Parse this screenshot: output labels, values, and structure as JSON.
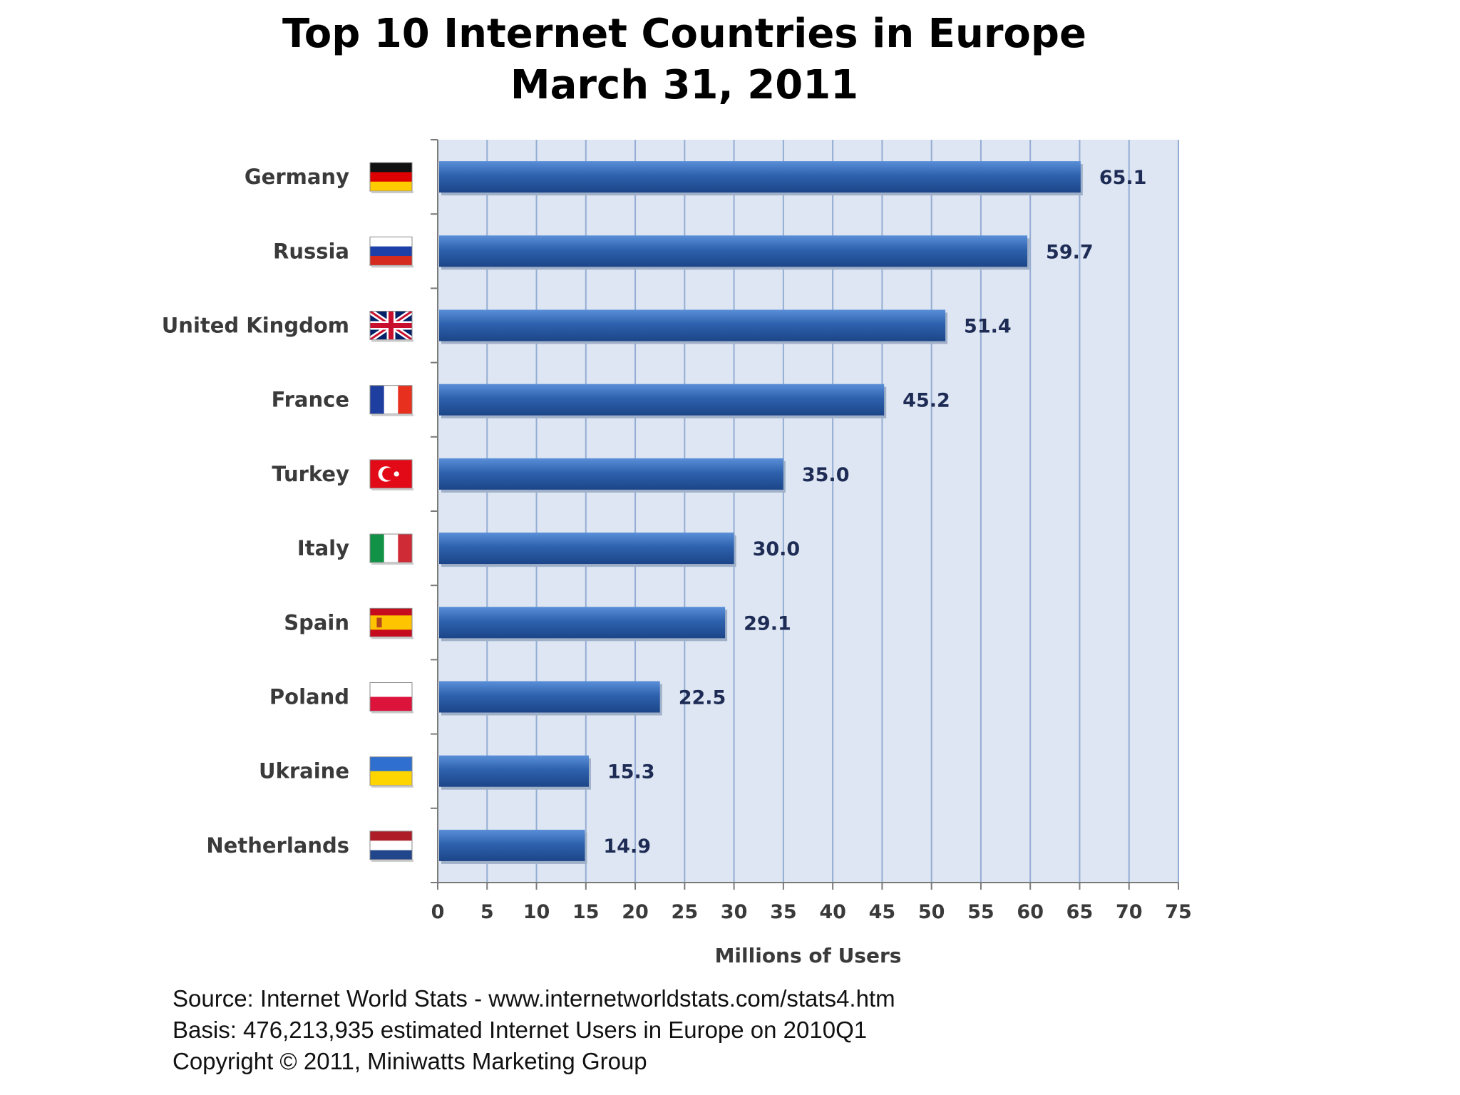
{
  "chart_data": {
    "type": "bar",
    "orientation": "horizontal",
    "title": "Top 10 Internet Countries in Europe",
    "subtitle": "March 31, 2011",
    "xlabel": "Millions of Users",
    "ylabel": "",
    "xlim": [
      0,
      75
    ],
    "ticks": [
      "0",
      "5",
      "10",
      "15",
      "20",
      "25",
      "30",
      "35",
      "40",
      "45",
      "50",
      "55",
      "60",
      "65",
      "70",
      "75"
    ],
    "grid": true,
    "legend": "none",
    "categories": [
      "Germany",
      "Russia",
      "United Kingdom",
      "France",
      "Turkey",
      "Italy",
      "Spain",
      "Poland",
      "Ukraine",
      "Netherlands"
    ],
    "values": [
      65.1,
      59.7,
      51.4,
      45.2,
      35.0,
      30.0,
      29.1,
      22.5,
      15.3,
      14.9
    ],
    "value_labels": [
      "65.1",
      "59.7",
      "51.4",
      "45.2",
      "35.0",
      "30.0",
      "29.1",
      "22.5",
      "15.3",
      "14.9"
    ],
    "flags": [
      "germany-flag-icon",
      "russia-flag-icon",
      "uk-flag-icon",
      "france-flag-icon",
      "turkey-flag-icon",
      "italy-flag-icon",
      "spain-flag-icon",
      "poland-flag-icon",
      "ukraine-flag-icon",
      "netherlands-flag-icon"
    ],
    "colors": {
      "bar": "#2e62ae",
      "bar_light": "#5a8fd8",
      "bar_dark": "#1c4588",
      "plot_bg": "#dde6f2",
      "gridline": "#95add4",
      "label_text": "#3a3a3a",
      "value_text": "#1d2b55"
    }
  },
  "footer": {
    "source": "Source: Internet World Stats  -  www.internetworldstats.com/stats4.htm",
    "basis": "Basis: 476,213,935 estimated Internet  Users in Europe on 2010Q1",
    "copyright": "Copyright © 2011, Miniwatts Marketing Group"
  }
}
